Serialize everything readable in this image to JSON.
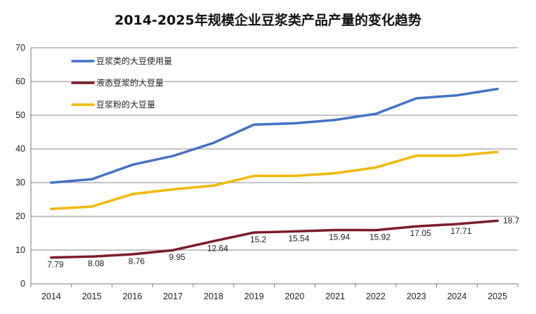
{
  "chart_data": {
    "type": "line",
    "title": "2014-2025年规模企业豆浆类产品产量的变化趋势",
    "xlabel": "",
    "ylabel": "",
    "ylim": [
      0,
      70
    ],
    "yticks": [
      0,
      10,
      20,
      30,
      40,
      50,
      60,
      70
    ],
    "grid": true,
    "legend_position": "top-left",
    "x": [
      "2014",
      "2015",
      "2016",
      "2017",
      "2018",
      "2019",
      "2020",
      "2021",
      "2022",
      "2023",
      "2024",
      "2025"
    ],
    "series": [
      {
        "name": "豆浆类的大豆使用量",
        "color": "#4472C4",
        "values": [
          30.0,
          31.0,
          35.3,
          37.9,
          41.8,
          47.2,
          47.6,
          48.6,
          50.4,
          55.0,
          55.9,
          57.8
        ],
        "labels": []
      },
      {
        "name": "液态豆浆的大豆量",
        "color": "#7B1C2A",
        "values": [
          7.79,
          8.08,
          8.76,
          9.95,
          12.64,
          15.2,
          15.54,
          15.94,
          15.92,
          17.05,
          17.71,
          18.7
        ],
        "labels": [
          "7.79",
          "8.08",
          "8.76",
          "9.95",
          "12.64",
          "15.2",
          "15.54",
          "15.94",
          "15.92",
          "17.05",
          "17.71",
          "18.7"
        ]
      },
      {
        "name": "豆浆粉的大豆量",
        "color": "#F2B705",
        "values": [
          22.2,
          22.9,
          26.6,
          28.0,
          29.1,
          32.0,
          32.0,
          32.8,
          34.5,
          38.0,
          38.0,
          39.1
        ],
        "labels": []
      }
    ]
  }
}
